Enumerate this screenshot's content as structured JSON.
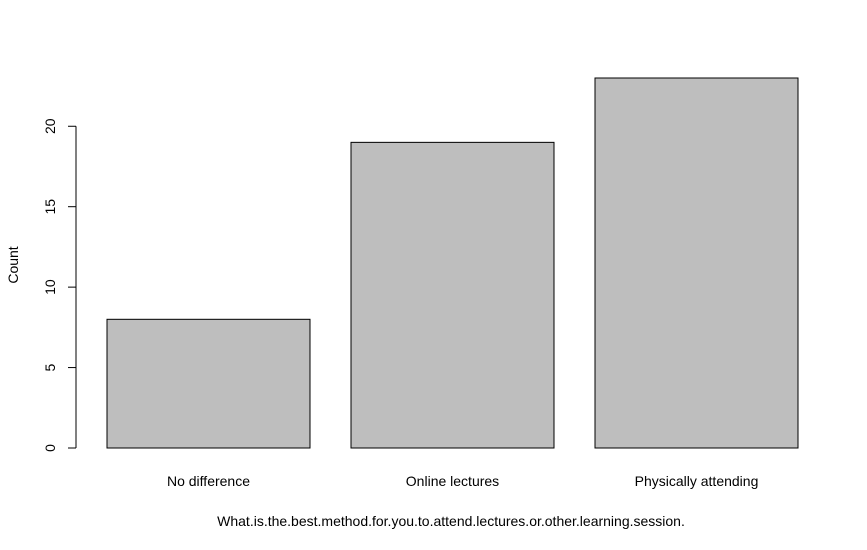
{
  "chart_data": {
    "type": "bar",
    "categories": [
      "No difference",
      "Online lectures",
      "Physically attending"
    ],
    "values": [
      8,
      19,
      23
    ],
    "title": "",
    "xlabel": "What.is.the.best.method.for.you.to.attend.lectures.or.other.learning.session.",
    "ylabel": "Count",
    "ylim": [
      0,
      23
    ],
    "yticks": [
      0,
      5,
      10,
      15,
      20
    ],
    "grid": false,
    "bar_color": "#bebebe",
    "bar_border_color": "#000000"
  }
}
